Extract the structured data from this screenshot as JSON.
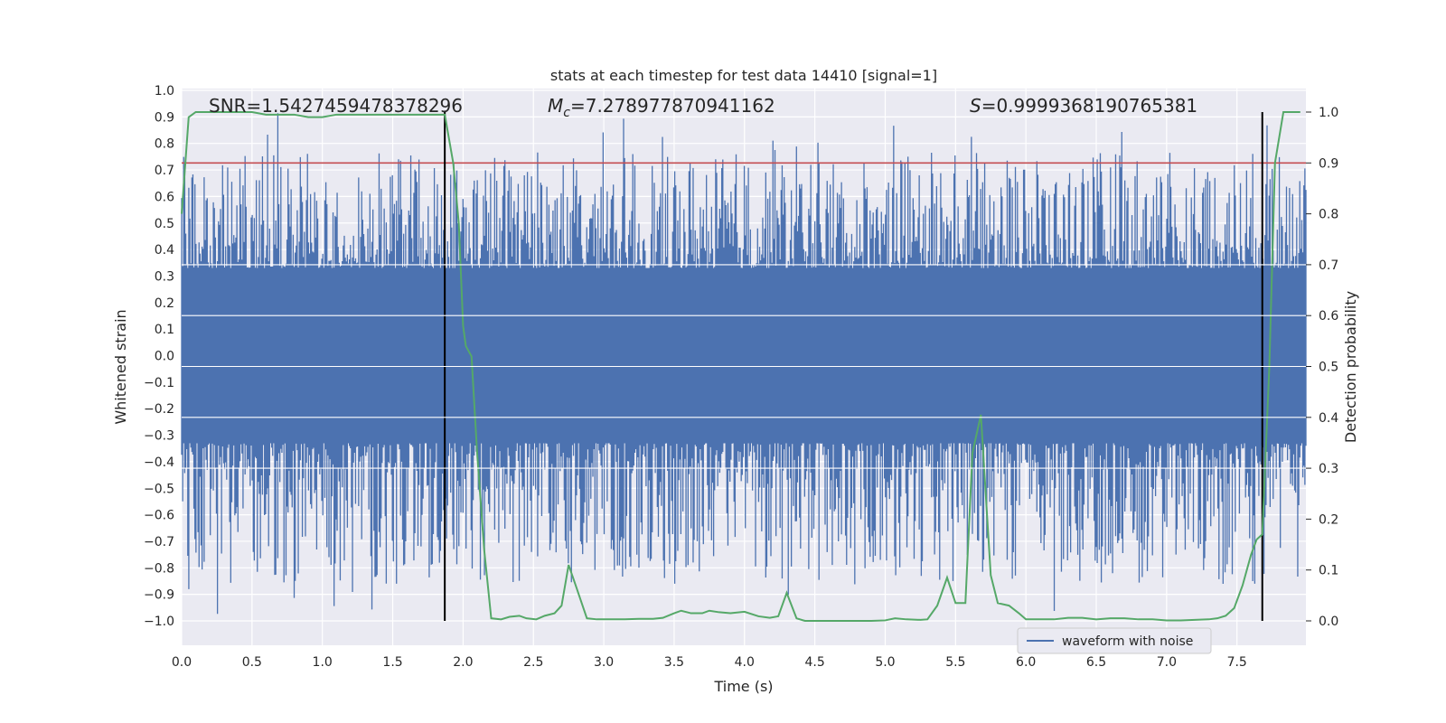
{
  "chart_data": {
    "type": "line",
    "title": "stats at each timestep for test data 14410 [signal=1]",
    "xlabel": "Time (s)",
    "ylabel": "Whitened strain",
    "y2label": "Detection probability",
    "xlim": [
      0.0,
      7.99
    ],
    "ylim": [
      -1.0,
      1.0
    ],
    "y2lim": [
      0.0,
      1.0
    ],
    "xticks": [
      0.0,
      0.5,
      1.0,
      1.5,
      2.0,
      2.5,
      3.0,
      3.5,
      4.0,
      4.5,
      5.0,
      5.5,
      6.0,
      6.5,
      7.0,
      7.5
    ],
    "xtick_labels": [
      "0.0",
      "0.5",
      "1.0",
      "1.5",
      "2.0",
      "2.5",
      "3.0",
      "3.5",
      "4.0",
      "4.5",
      "5.0",
      "5.5",
      "6.0",
      "6.5",
      "7.0",
      "7.5"
    ],
    "yticks": [
      -1.0,
      -0.9,
      -0.8,
      -0.7,
      -0.6,
      -0.5,
      -0.4,
      -0.3,
      -0.2,
      -0.1,
      0.0,
      0.1,
      0.2,
      0.3,
      0.4,
      0.5,
      0.6,
      0.7,
      0.8,
      0.9,
      1.0
    ],
    "ytick_labels": [
      "−1.0",
      "−0.9",
      "−0.8",
      "−0.7",
      "−0.6",
      "−0.5",
      "−0.4",
      "−0.3",
      "−0.2",
      "−0.1",
      "0.0",
      "0.1",
      "0.2",
      "0.3",
      "0.4",
      "0.5",
      "0.6",
      "0.7",
      "0.8",
      "0.9",
      "1.0"
    ],
    "y2ticks": [
      0.0,
      0.1,
      0.2,
      0.3,
      0.4,
      0.5,
      0.6,
      0.7,
      0.8,
      0.9,
      1.0
    ],
    "y2tick_labels": [
      "0.0",
      "0.1",
      "0.2",
      "0.3",
      "0.4",
      "0.5",
      "0.6",
      "0.7",
      "0.8",
      "0.9",
      "1.0"
    ],
    "grid": true,
    "annotations": {
      "snr": "SNR=1.5427459478378296",
      "mc_symbol": "M",
      "mc_sub": "c",
      "mc_value": "=7.278977870941162",
      "s_symbol": "S",
      "s_value": "=0.9999368190765381"
    },
    "threshold_y2": 0.9,
    "vertical_markers_x": [
      1.87,
      7.68
    ],
    "waveform": {
      "name": "waveform with noise",
      "color": "#4c72b0",
      "x_start": 0.0,
      "x_end": 7.99,
      "n_points": 1100,
      "seed": 14410,
      "core_envelope": 0.33,
      "max_peak": 0.93,
      "min_peak": -1.0
    },
    "probability": {
      "color": "#55a868",
      "x": [
        0.0,
        0.05,
        0.1,
        0.15,
        0.2,
        0.3,
        0.4,
        0.5,
        0.6,
        0.7,
        0.8,
        0.9,
        1.0,
        1.1,
        1.2,
        1.3,
        1.4,
        1.5,
        1.6,
        1.7,
        1.8,
        1.87,
        1.93,
        1.97,
        2.0,
        2.02,
        2.06,
        2.1,
        2.15,
        2.2,
        2.27,
        2.33,
        2.4,
        2.45,
        2.52,
        2.58,
        2.65,
        2.7,
        2.75,
        2.8,
        2.88,
        2.95,
        3.05,
        3.15,
        3.25,
        3.35,
        3.42,
        3.5,
        3.55,
        3.62,
        3.7,
        3.75,
        3.82,
        3.9,
        4.0,
        4.1,
        4.18,
        4.24,
        4.3,
        4.37,
        4.43,
        4.5,
        4.6,
        4.7,
        4.8,
        4.9,
        5.0,
        5.07,
        5.15,
        5.25,
        5.3,
        5.37,
        5.44,
        5.5,
        5.57,
        5.62,
        5.68,
        5.75,
        5.8,
        5.88,
        5.95,
        6.0,
        6.1,
        6.2,
        6.3,
        6.4,
        6.5,
        6.6,
        6.7,
        6.8,
        6.9,
        7.0,
        7.1,
        7.2,
        7.3,
        7.36,
        7.42,
        7.48,
        7.54,
        7.6,
        7.64,
        7.68,
        7.73,
        7.77,
        7.83,
        7.9,
        7.95
      ],
      "y": [
        0.8,
        0.99,
        1.0,
        1.0,
        1.0,
        1.0,
        1.0,
        1.0,
        0.995,
        0.995,
        0.995,
        0.99,
        0.99,
        0.995,
        0.995,
        0.995,
        0.995,
        0.995,
        0.995,
        0.995,
        0.995,
        0.995,
        0.9,
        0.78,
        0.58,
        0.54,
        0.52,
        0.33,
        0.14,
        0.005,
        0.003,
        0.008,
        0.01,
        0.005,
        0.003,
        0.01,
        0.015,
        0.03,
        0.11,
        0.07,
        0.005,
        0.003,
        0.003,
        0.003,
        0.004,
        0.004,
        0.006,
        0.015,
        0.02,
        0.015,
        0.015,
        0.02,
        0.017,
        0.015,
        0.018,
        0.009,
        0.006,
        0.009,
        0.055,
        0.005,
        0.0,
        0.0,
        0.0,
        0.0,
        0.0,
        0.0,
        0.001,
        0.005,
        0.003,
        0.002,
        0.003,
        0.03,
        0.085,
        0.035,
        0.035,
        0.33,
        0.405,
        0.09,
        0.035,
        0.03,
        0.015,
        0.003,
        0.003,
        0.003,
        0.006,
        0.006,
        0.003,
        0.005,
        0.005,
        0.003,
        0.003,
        0.001,
        0.001,
        0.002,
        0.003,
        0.005,
        0.01,
        0.025,
        0.07,
        0.13,
        0.16,
        0.17,
        0.5,
        0.9,
        1.0,
        1.0,
        1.0
      ]
    },
    "legend": {
      "location": "lower-right",
      "label": "waveform with noise"
    }
  }
}
